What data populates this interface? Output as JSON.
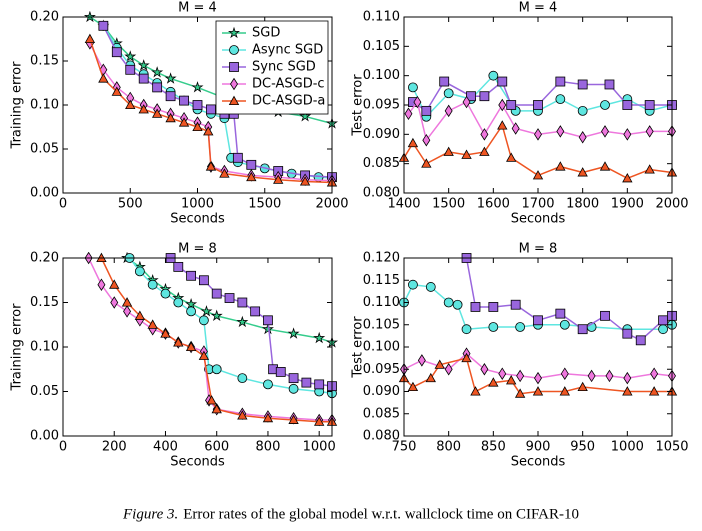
{
  "chart_data": [
    {
      "type": "line",
      "title": "M = 4",
      "x_label": "Seconds",
      "y_label": "Training error",
      "legend": "upper right",
      "xlim": [
        0,
        2000
      ],
      "xticks": [
        0,
        500,
        1000,
        1500,
        2000
      ],
      "ylim": [
        0,
        0.2
      ],
      "yticks": [
        {
          "value": 0,
          "label": "0.00"
        },
        {
          "value": 0.05,
          "label": "0.05"
        },
        {
          "value": 0.1,
          "label": "0.10"
        },
        {
          "value": 0.15,
          "label": "0.15"
        },
        {
          "value": 0.2,
          "label": "0.20"
        }
      ],
      "series": [
        {
          "name": "SGD",
          "color": "#35cc8c",
          "marker": "star",
          "x": [
            200,
            300,
            400,
            500,
            600,
            700,
            800,
            1000,
            1200,
            1400,
            1600,
            1800,
            2000
          ],
          "values": [
            0.2,
            0.19,
            0.17,
            0.155,
            0.145,
            0.137,
            0.13,
            0.12,
            0.108,
            0.1,
            0.092,
            0.087,
            0.079
          ]
        },
        {
          "name": "Async SGD",
          "color": "#5ee6e0",
          "marker": "circle",
          "x": [
            300,
            400,
            500,
            600,
            700,
            800,
            900,
            1000,
            1100,
            1200,
            1250,
            1300,
            1500,
            1700,
            1900,
            2000
          ],
          "values": [
            0.19,
            0.165,
            0.145,
            0.135,
            0.125,
            0.115,
            0.105,
            0.095,
            0.09,
            0.085,
            0.04,
            0.035,
            0.028,
            0.022,
            0.018,
            0.017
          ]
        },
        {
          "name": "Sync SGD",
          "color": "#9966dd",
          "marker": "square",
          "x": [
            300,
            400,
            500,
            600,
            700,
            800,
            900,
            1000,
            1100,
            1200,
            1270,
            1300,
            1400,
            1600,
            1800,
            2000
          ],
          "values": [
            0.19,
            0.16,
            0.14,
            0.13,
            0.12,
            0.11,
            0.105,
            0.1,
            0.095,
            0.09,
            0.09,
            0.04,
            0.032,
            0.025,
            0.02,
            0.018
          ]
        },
        {
          "name": "DC-ASGD-c",
          "color": "#ee77dd",
          "marker": "diamond",
          "x": [
            200,
            300,
            400,
            500,
            600,
            700,
            800,
            900,
            1000,
            1080,
            1100,
            1200,
            1400,
            1600,
            1800,
            2000
          ],
          "values": [
            0.17,
            0.14,
            0.12,
            0.108,
            0.1,
            0.095,
            0.09,
            0.085,
            0.08,
            0.075,
            0.03,
            0.025,
            0.02,
            0.018,
            0.015,
            0.014
          ]
        },
        {
          "name": "DC-ASGD-a",
          "color": "#ee5522",
          "marker": "triangle",
          "x": [
            200,
            300,
            400,
            500,
            600,
            700,
            800,
            900,
            1000,
            1080,
            1100,
            1200,
            1400,
            1600,
            1800,
            2000
          ],
          "values": [
            0.175,
            0.13,
            0.115,
            0.1,
            0.095,
            0.09,
            0.085,
            0.08,
            0.075,
            0.07,
            0.03,
            0.022,
            0.018,
            0.015,
            0.013,
            0.012
          ]
        }
      ]
    },
    {
      "type": "line",
      "title": "M = 4",
      "x_label": "Seconds",
      "y_label": "Test error",
      "xlim": [
        1400,
        2000
      ],
      "xticks": [
        1400,
        1500,
        1600,
        1700,
        1800,
        1900,
        2000
      ],
      "ylim": [
        0.08,
        0.11
      ],
      "yticks": [
        {
          "value": 0.08,
          "label": "0.080"
        },
        {
          "value": 0.085,
          "label": "0.085"
        },
        {
          "value": 0.09,
          "label": "0.090"
        },
        {
          "value": 0.095,
          "label": "0.095"
        },
        {
          "value": 0.1,
          "label": "0.100"
        },
        {
          "value": 0.105,
          "label": "0.105"
        },
        {
          "value": 0.11,
          "label": "0.110"
        }
      ],
      "series": [
        {
          "name": "Async SGD",
          "color": "#5ee6e0",
          "marker": "circle",
          "x": [
            1420,
            1450,
            1500,
            1550,
            1600,
            1650,
            1700,
            1750,
            1800,
            1850,
            1900,
            1950,
            2000
          ],
          "values": [
            0.098,
            0.093,
            0.097,
            0.096,
            0.1,
            0.094,
            0.094,
            0.096,
            0.094,
            0.095,
            0.096,
            0.094,
            0.095
          ]
        },
        {
          "name": "Sync SGD",
          "color": "#9966dd",
          "marker": "square",
          "x": [
            1420,
            1450,
            1490,
            1550,
            1580,
            1620,
            1640,
            1700,
            1750,
            1800,
            1860,
            1900,
            1950,
            2000
          ],
          "values": [
            0.0955,
            0.094,
            0.099,
            0.0965,
            0.0965,
            0.099,
            0.095,
            0.095,
            0.099,
            0.0985,
            0.0985,
            0.095,
            0.095,
            0.095
          ]
        },
        {
          "name": "DC-ASGD-c",
          "color": "#ee77dd",
          "marker": "diamond",
          "x": [
            1410,
            1430,
            1450,
            1500,
            1540,
            1580,
            1620,
            1650,
            1700,
            1750,
            1800,
            1850,
            1900,
            1950,
            2000
          ],
          "values": [
            0.0935,
            0.0955,
            0.089,
            0.094,
            0.0955,
            0.09,
            0.095,
            0.091,
            0.09,
            0.0905,
            0.0895,
            0.0905,
            0.09,
            0.0905,
            0.0905
          ]
        },
        {
          "name": "DC-ASGD-a",
          "color": "#ee5522",
          "marker": "triangle",
          "x": [
            1400,
            1420,
            1450,
            1500,
            1540,
            1580,
            1620,
            1640,
            1700,
            1750,
            1800,
            1850,
            1900,
            1950,
            2000
          ],
          "values": [
            0.086,
            0.0885,
            0.085,
            0.087,
            0.0865,
            0.087,
            0.0915,
            0.086,
            0.083,
            0.0845,
            0.0835,
            0.0845,
            0.0825,
            0.084,
            0.0835
          ]
        }
      ]
    },
    {
      "type": "line",
      "title": "M = 8",
      "x_label": "Seconds",
      "y_label": "Training error",
      "xlim": [
        0,
        1050
      ],
      "xticks": [
        0,
        200,
        400,
        600,
        800,
        1000
      ],
      "ylim": [
        0,
        0.2
      ],
      "yticks": [
        {
          "value": 0,
          "label": "0.00"
        },
        {
          "value": 0.05,
          "label": "0.05"
        },
        {
          "value": 0.1,
          "label": "0.10"
        },
        {
          "value": 0.15,
          "label": "0.15"
        },
        {
          "value": 0.2,
          "label": "0.20"
        }
      ],
      "series": [
        {
          "name": "SGD",
          "color": "#35cc8c",
          "marker": "star",
          "x": [
            250,
            300,
            350,
            400,
            450,
            500,
            560,
            600,
            700,
            800,
            900,
            1000,
            1050
          ],
          "values": [
            0.2,
            0.19,
            0.175,
            0.165,
            0.155,
            0.148,
            0.14,
            0.135,
            0.128,
            0.12,
            0.115,
            0.11,
            0.105
          ]
        },
        {
          "name": "Async SGD",
          "color": "#5ee6e0",
          "marker": "circle",
          "x": [
            260,
            300,
            350,
            400,
            450,
            500,
            550,
            570,
            600,
            700,
            800,
            900,
            1000,
            1050
          ],
          "values": [
            0.2,
            0.185,
            0.17,
            0.16,
            0.15,
            0.14,
            0.13,
            0.075,
            0.075,
            0.065,
            0.058,
            0.053,
            0.05,
            0.048
          ]
        },
        {
          "name": "Sync SGD",
          "color": "#9966dd",
          "marker": "square",
          "x": [
            420,
            450,
            500,
            550,
            600,
            650,
            700,
            750,
            800,
            820,
            850,
            900,
            950,
            1000,
            1050
          ],
          "values": [
            0.2,
            0.19,
            0.18,
            0.175,
            0.16,
            0.155,
            0.15,
            0.14,
            0.13,
            0.075,
            0.072,
            0.065,
            0.06,
            0.058,
            0.056
          ]
        },
        {
          "name": "DC-ASGD-c",
          "color": "#ee77dd",
          "marker": "diamond",
          "x": [
            100,
            150,
            200,
            250,
            300,
            350,
            400,
            450,
            500,
            550,
            570,
            600,
            700,
            800,
            900,
            1000,
            1050
          ],
          "values": [
            0.2,
            0.17,
            0.15,
            0.14,
            0.13,
            0.12,
            0.115,
            0.105,
            0.1,
            0.095,
            0.04,
            0.03,
            0.025,
            0.022,
            0.02,
            0.018,
            0.018
          ]
        },
        {
          "name": "DC-ASGD-a",
          "color": "#ee5522",
          "marker": "triangle",
          "x": [
            150,
            200,
            250,
            300,
            350,
            400,
            450,
            500,
            550,
            580,
            600,
            700,
            800,
            900,
            1000,
            1050
          ],
          "values": [
            0.2,
            0.17,
            0.15,
            0.135,
            0.125,
            0.115,
            0.105,
            0.1,
            0.09,
            0.04,
            0.03,
            0.023,
            0.02,
            0.018,
            0.016,
            0.016
          ]
        }
      ]
    },
    {
      "type": "line",
      "title": "M = 8",
      "x_label": "Seconds",
      "y_label": "Test error",
      "xlim": [
        750,
        1050
      ],
      "xticks": [
        750,
        800,
        850,
        900,
        950,
        1000,
        1050
      ],
      "ylim": [
        0.08,
        0.12
      ],
      "yticks": [
        {
          "value": 0.08,
          "label": "0.080"
        },
        {
          "value": 0.085,
          "label": "0.085"
        },
        {
          "value": 0.09,
          "label": "0.090"
        },
        {
          "value": 0.095,
          "label": "0.095"
        },
        {
          "value": 0.1,
          "label": "0.100"
        },
        {
          "value": 0.105,
          "label": "0.105"
        },
        {
          "value": 0.11,
          "label": "0.110"
        },
        {
          "value": 0.115,
          "label": "0.115"
        },
        {
          "value": 0.12,
          "label": "0.120"
        }
      ],
      "series": [
        {
          "name": "Async SGD",
          "color": "#5ee6e0",
          "marker": "circle",
          "x": [
            750,
            760,
            780,
            800,
            810,
            820,
            850,
            880,
            900,
            930,
            960,
            1000,
            1040,
            1050
          ],
          "values": [
            0.11,
            0.114,
            0.1135,
            0.11,
            0.1095,
            0.104,
            0.1045,
            0.1045,
            0.105,
            0.105,
            0.1045,
            0.104,
            0.104,
            0.105
          ]
        },
        {
          "name": "Sync SGD",
          "color": "#9966dd",
          "marker": "square",
          "x": [
            820,
            830,
            850,
            875,
            900,
            925,
            950,
            975,
            1000,
            1015,
            1040,
            1050
          ],
          "values": [
            0.12,
            0.109,
            0.109,
            0.1095,
            0.106,
            0.1075,
            0.104,
            0.107,
            0.103,
            0.1015,
            0.106,
            0.107
          ]
        },
        {
          "name": "DC-ASGD-c",
          "color": "#ee77dd",
          "marker": "diamond",
          "x": [
            750,
            770,
            800,
            820,
            840,
            860,
            880,
            900,
            930,
            960,
            980,
            1000,
            1030,
            1050
          ],
          "values": [
            0.095,
            0.097,
            0.095,
            0.0985,
            0.095,
            0.094,
            0.0935,
            0.093,
            0.094,
            0.0935,
            0.0935,
            0.093,
            0.094,
            0.0935
          ]
        },
        {
          "name": "DC-ASGD-a",
          "color": "#ee5522",
          "marker": "triangle",
          "x": [
            750,
            760,
            780,
            790,
            820,
            830,
            850,
            870,
            880,
            900,
            930,
            950,
            1000,
            1030,
            1050
          ],
          "values": [
            0.093,
            0.091,
            0.093,
            0.096,
            0.0975,
            0.09,
            0.092,
            0.0925,
            0.0895,
            0.09,
            0.09,
            0.091,
            0.09,
            0.09,
            0.09
          ]
        }
      ]
    }
  ],
  "caption": {
    "label": "Figure 3.",
    "text": "Error rates of the global model w.r.t. wallclock time on CIFAR-10"
  }
}
